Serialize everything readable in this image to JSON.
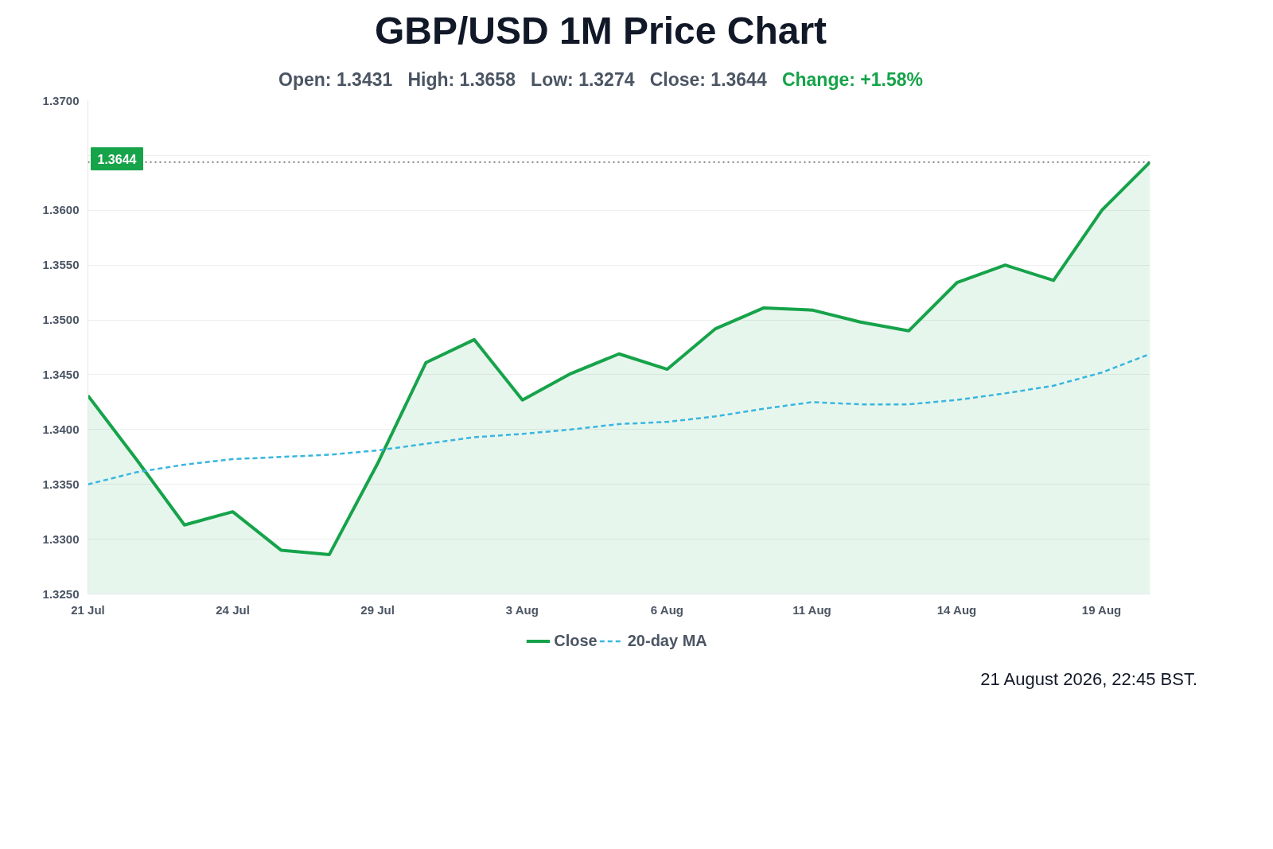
{
  "chart_data": {
    "type": "line",
    "title": "GBP/USD 1M Price Chart",
    "subtitle": "Open: 1.3431   High: 1.3658   Low: 1.3274   Close: 1.3644   Change: +1.58%",
    "categories": [
      "21 Jul",
      null,
      null,
      "24 Jul",
      null,
      null,
      "29 Jul",
      null,
      null,
      "3 Aug",
      null,
      null,
      "6 Aug",
      null,
      null,
      "11 Aug",
      null,
      null,
      "14 Aug",
      null,
      null,
      "19 Aug",
      null
    ],
    "series": [
      {
        "name": "Close",
        "type": "area",
        "color": "#16a34a",
        "values": [
          1.3431,
          1.3373,
          1.3313,
          1.3325,
          1.329,
          1.3286,
          1.3369,
          1.3461,
          1.3482,
          1.3427,
          1.3451,
          1.3469,
          1.3455,
          1.3492,
          1.3511,
          1.3509,
          1.3498,
          1.349,
          1.3534,
          1.355,
          1.3536,
          1.36,
          1.3644
        ]
      },
      {
        "name": "20-day MA",
        "line_style": "dashed",
        "color": "#38b6e0",
        "values": [
          1.335,
          1.3361,
          1.3368,
          1.3373,
          1.3375,
          1.3377,
          1.3381,
          1.3387,
          1.3393,
          1.3396,
          1.34,
          1.3405,
          1.3407,
          1.3412,
          1.3419,
          1.3425,
          1.3423,
          1.3423,
          1.3427,
          1.3433,
          1.344,
          1.3452,
          1.3469
        ]
      }
    ],
    "ylim": [
      1.325,
      1.37
    ],
    "yticks": [
      {
        "value": 1.325,
        "label": "1.3250"
      },
      {
        "value": 1.33,
        "label": "1.3300"
      },
      {
        "value": 1.335,
        "label": "1.3350"
      },
      {
        "value": 1.34,
        "label": "1.3400"
      },
      {
        "value": 1.345,
        "label": "1.3450"
      },
      {
        "value": 1.35,
        "label": "1.3500"
      },
      {
        "value": 1.355,
        "label": "1.3550"
      },
      {
        "value": 1.36,
        "label": "1.3600"
      },
      {
        "value": 1.365,
        "label": null
      },
      {
        "value": 1.37,
        "label": "1.3700"
      }
    ],
    "ref_lines": [
      {
        "axis": "y",
        "value": 1.3644,
        "label": "1.3644",
        "color": "#555555",
        "line_style": "dotted"
      }
    ],
    "grid": "y",
    "legend": "bottom",
    "marker": "none",
    "annotations": [
      "21 August 2026, 22:45 BST."
    ]
  }
}
